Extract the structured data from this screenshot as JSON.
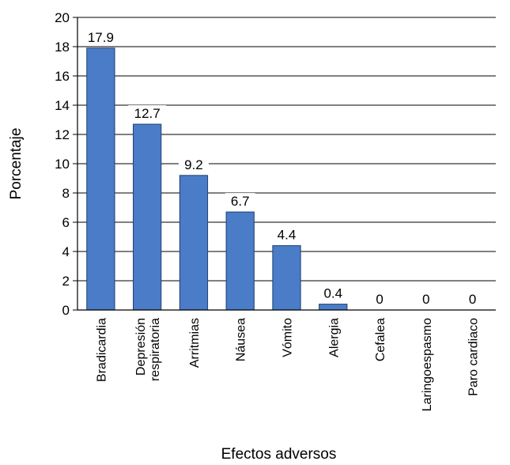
{
  "chart_data": {
    "type": "bar",
    "categories": [
      [
        "Bradicardia"
      ],
      [
        "Depresión",
        "respiratoria"
      ],
      [
        "Arritmias"
      ],
      [
        "Náusea"
      ],
      [
        "Vómito"
      ],
      [
        "Alergia"
      ],
      [
        "Cefalea"
      ],
      [
        "Laringoespasmo"
      ],
      [
        "Paro cardiaco"
      ]
    ],
    "values": [
      17.9,
      12.7,
      9.2,
      6.7,
      4.4,
      0.4,
      0,
      0,
      0
    ],
    "data_labels": [
      "17.9",
      "12.7",
      "9.2",
      "6.7",
      "4.4",
      "0.4",
      "0",
      "0",
      "0"
    ],
    "xlabel": "Efectos adversos",
    "ylabel": "Porcentaje",
    "ylim": [
      0,
      20
    ],
    "yticks": [
      0,
      2,
      4,
      6,
      8,
      10,
      12,
      14,
      16,
      18,
      20
    ],
    "grid": true,
    "bar_color": "#4a7cc7",
    "bar_edge_color": "#1f3f73"
  }
}
